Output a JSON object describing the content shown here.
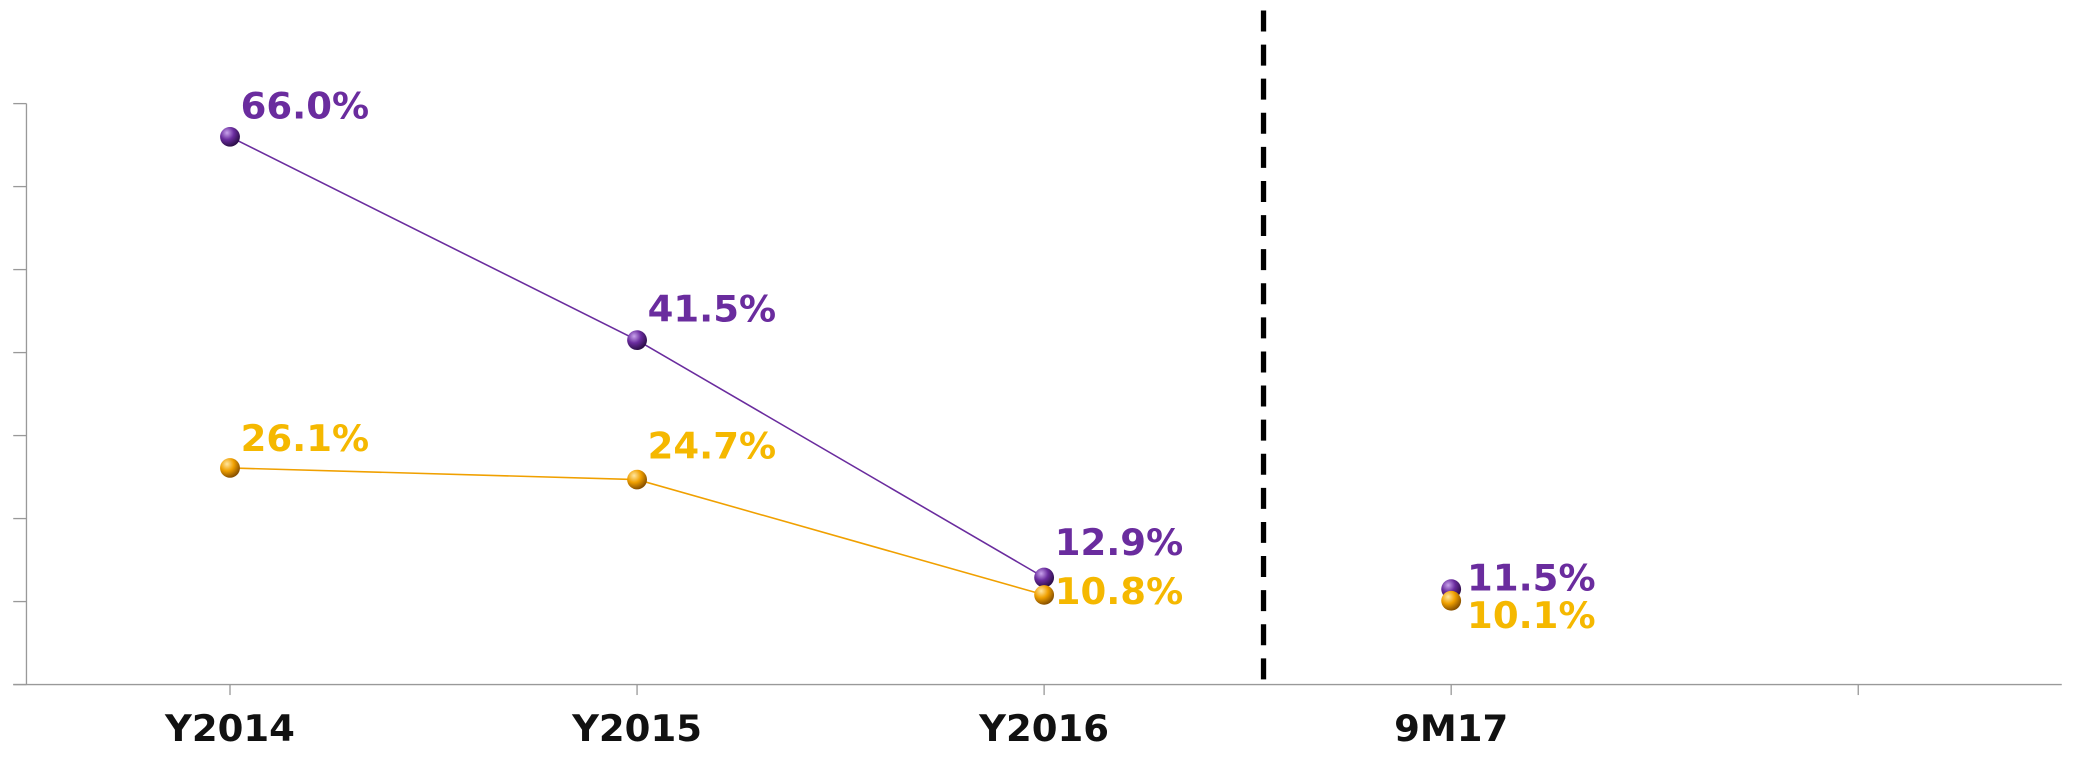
{
  "chart_data": {
    "type": "line",
    "categories": [
      "Y2014",
      "Y2015",
      "Y2016",
      "9M17",
      null
    ],
    "divider_after": "Y2016",
    "series": [
      {
        "color": "#6a2c9e",
        "label_color": "#6a2c9e",
        "values": [
          66.0,
          41.5,
          12.9,
          11.5,
          null
        ],
        "value_labels": [
          "66.0%",
          "41.5%",
          "12.9%",
          "11.5%",
          null
        ]
      },
      {
        "color": "#f0a000",
        "label_color": "#f5b800",
        "values": [
          26.1,
          24.7,
          10.8,
          10.1,
          null
        ],
        "value_labels": [
          "26.1%",
          "24.7%",
          "10.8%",
          "10.1%",
          null
        ]
      }
    ],
    "ylim": [
      0,
      70
    ],
    "yticks": [
      0,
      10,
      20,
      30,
      40,
      50,
      60,
      70
    ]
  }
}
